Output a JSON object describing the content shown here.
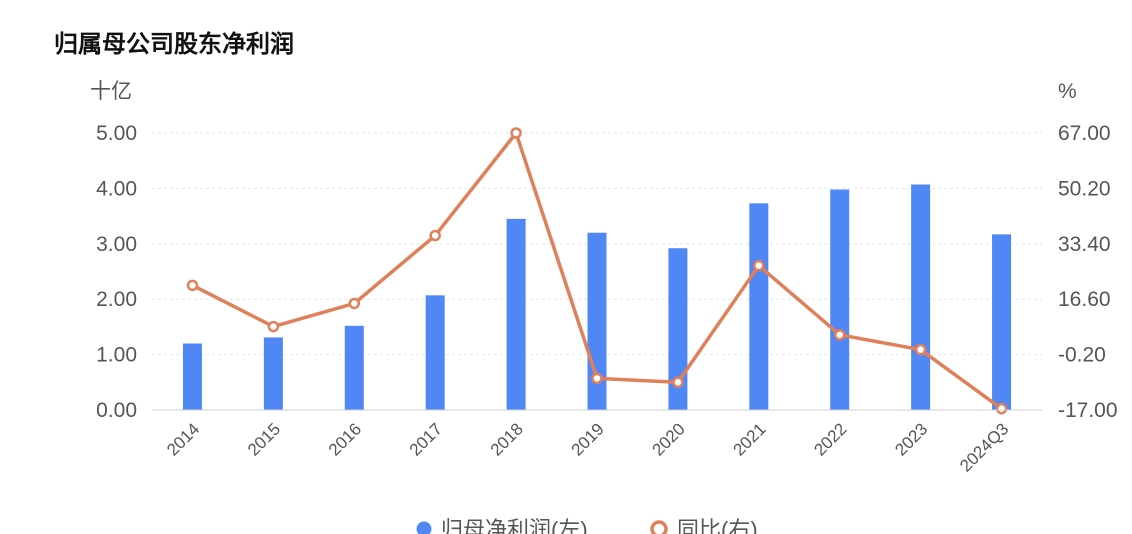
{
  "chart_title": "归属母公司股东净利润",
  "chart_data": {
    "type": "bar",
    "title": "归属母公司股东净利润",
    "categories": [
      "2014",
      "2015",
      "2016",
      "2017",
      "2018",
      "2019",
      "2020",
      "2021",
      "2022",
      "2023",
      "2024Q3"
    ],
    "y_left": {
      "unit": "十亿",
      "ylim": [
        0,
        5
      ],
      "ticks": [
        "0.00",
        "1.00",
        "2.00",
        "3.00",
        "4.00",
        "5.00"
      ]
    },
    "y_right": {
      "unit": "%",
      "ylim": [
        -17,
        67
      ],
      "ticks": [
        "-17.00",
        "-0.20",
        "16.60",
        "33.40",
        "50.20",
        "67.00"
      ]
    },
    "series": [
      {
        "name": "归母净利润(左)",
        "type": "bar",
        "axis": "left",
        "color": "#4f87f5",
        "values": [
          1.2,
          1.31,
          1.52,
          2.07,
          3.45,
          3.2,
          2.92,
          3.73,
          3.98,
          4.07,
          3.17
        ]
      },
      {
        "name": "同比(右)",
        "type": "line",
        "axis": "right",
        "color": "#e0805a",
        "values": [
          20.8,
          8.3,
          15.3,
          35.9,
          67.0,
          -7.4,
          -8.6,
          26.8,
          5.8,
          1.3,
          -16.6
        ]
      }
    ],
    "grid": true,
    "legend": "bottom"
  }
}
